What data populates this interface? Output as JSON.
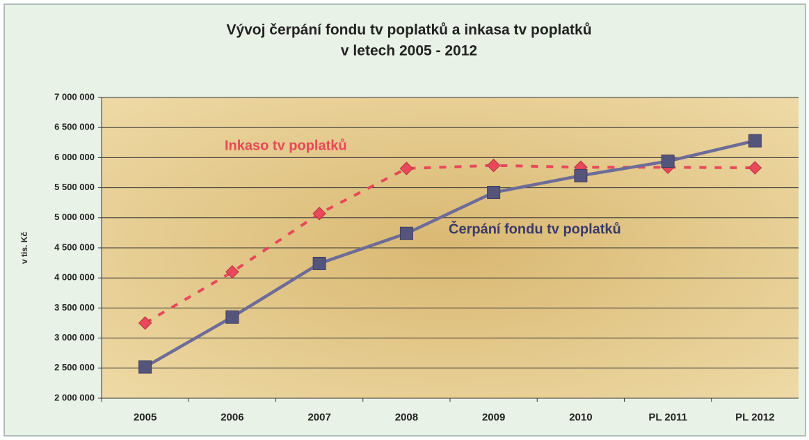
{
  "chart_data": {
    "type": "line",
    "title": "Vývoj čerpání fondu tv poplatků a inkasa tv poplatků",
    "subtitle": "v letech 2005 - 2012",
    "ylabel": "v tis. Kč",
    "categories": [
      "2005",
      "2006",
      "2007",
      "2008",
      "2009",
      "2010",
      "PL 2011",
      "PL 2012"
    ],
    "series": [
      {
        "name": "Inkaso tv poplatků",
        "color": "#e8485a",
        "dash": true,
        "marker": "diamond",
        "values": [
          3250000,
          4100000,
          5070000,
          5820000,
          5870000,
          5840000,
          5840000,
          5830000
        ]
      },
      {
        "name": "Čerpání fondu tv poplatků",
        "color": "#6d6c98",
        "dash": false,
        "marker": "square",
        "values": [
          2520000,
          3350000,
          4240000,
          4740000,
          5420000,
          5700000,
          5940000,
          6280000
        ]
      }
    ],
    "ylim": [
      2000000,
      7000000
    ],
    "yticks": [
      {
        "value": 2000000,
        "label": "2 000 000"
      },
      {
        "value": 2500000,
        "label": "2 500 000"
      },
      {
        "value": 3000000,
        "label": "3 000 000"
      },
      {
        "value": 3500000,
        "label": "3 500 000"
      },
      {
        "value": 4000000,
        "label": "4 000 000"
      },
      {
        "value": 4500000,
        "label": "4 500 000"
      },
      {
        "value": 5000000,
        "label": "5 000 000"
      },
      {
        "value": 5500000,
        "label": "5 500 000"
      },
      {
        "value": 6000000,
        "label": "6 000 000"
      },
      {
        "value": 6500000,
        "label": "6 500 000"
      },
      {
        "value": 7000000,
        "label": "7 000 000"
      }
    ],
    "grid": true
  }
}
